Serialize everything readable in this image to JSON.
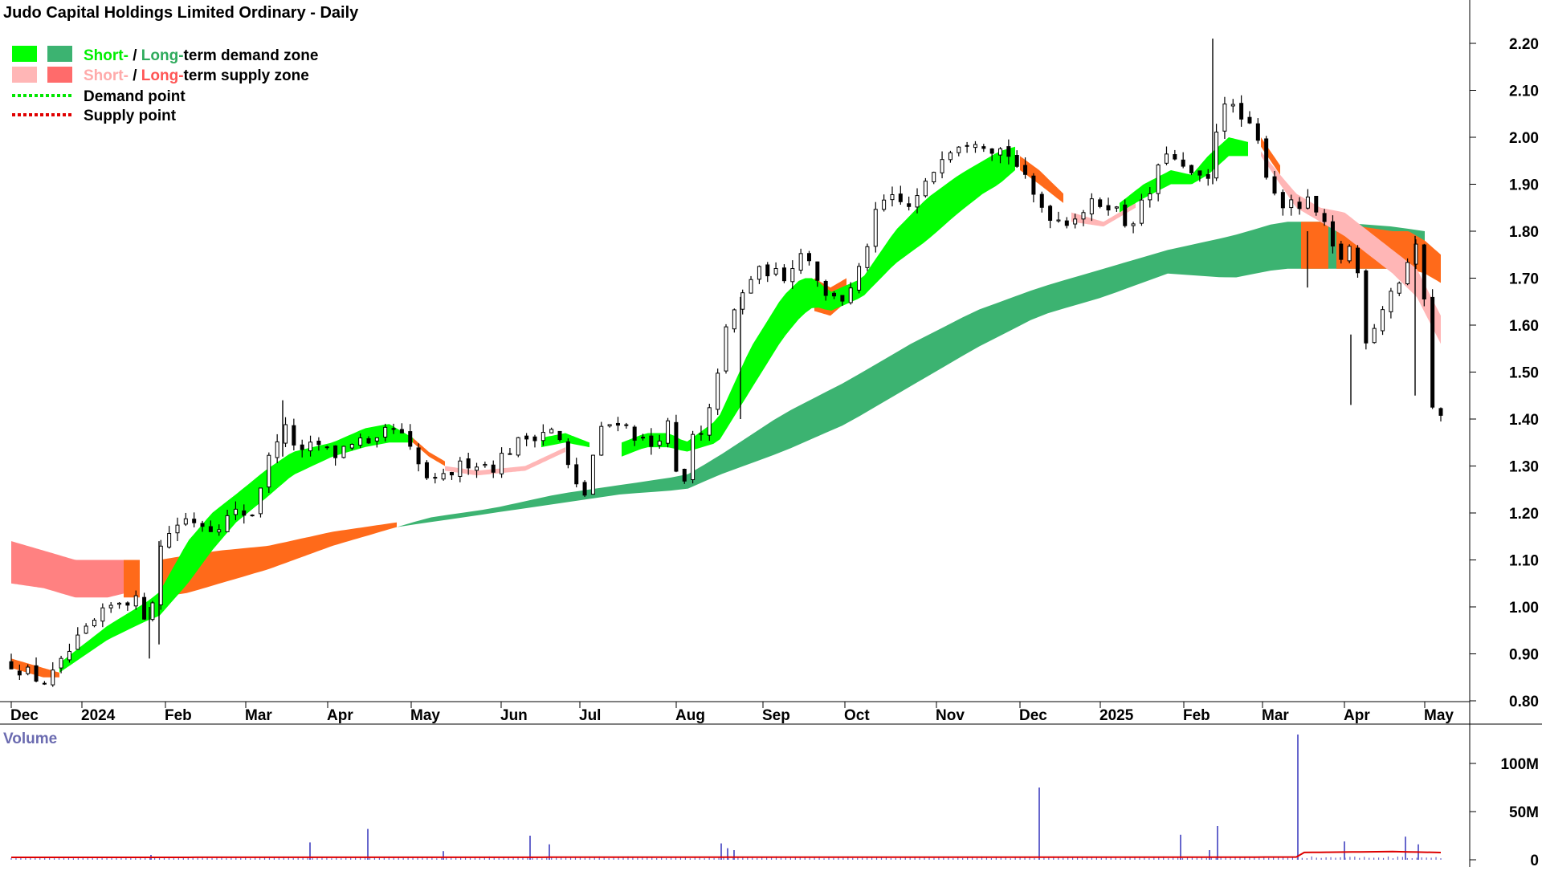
{
  "chart_data": {
    "type": "candlestick",
    "title": "Judo Capital Holdings Limited Ordinary - Daily",
    "legend": {
      "demand_zone": {
        "short": "Short-",
        "sep": " / ",
        "long": "Long-",
        "rest": "term demand zone"
      },
      "supply_zone": {
        "short": "Short-",
        "sep": " / ",
        "long": "Long-",
        "rest": "term supply zone"
      },
      "demand_point": "Demand point",
      "supply_point": "Supply point"
    },
    "colors": {
      "short_demand": "#00ff00",
      "long_demand": "#3cb371",
      "short_supply": "#ffb6b6",
      "long_supply": "#ff6b6b",
      "supply_orange": "#ff6a1a",
      "demand_point": "#00e600",
      "supply_point": "#e00000",
      "volume_bar": "#6666cc",
      "volume_avg": "#dd0000",
      "candle": "#000000"
    },
    "x_axis": {
      "labels": [
        "Dec",
        "2024",
        "Feb",
        "Mar",
        "Apr",
        "May",
        "Jun",
        "Jul",
        "Aug",
        "Sep",
        "Oct",
        "Nov",
        "Dec",
        "2025",
        "Feb",
        "Mar",
        "Apr",
        "May"
      ],
      "label_days": [
        0,
        44,
        96,
        146,
        197,
        249,
        305,
        354,
        414,
        468,
        519,
        576,
        628,
        678,
        730,
        779,
        830,
        880
      ]
    },
    "y_axis": {
      "ticks": [
        0.8,
        0.9,
        1.0,
        1.1,
        1.2,
        1.3,
        1.4,
        1.5,
        1.6,
        1.7,
        1.8,
        1.9,
        2.0,
        2.1,
        2.2
      ],
      "tick_labels": [
        "0.80",
        "0.90",
        "1.00",
        "1.10",
        "1.20",
        "1.30",
        "1.40",
        "1.50",
        "1.60",
        "1.70",
        "1.80",
        "1.90",
        "2.00",
        "2.10",
        "2.20"
      ],
      "range": [
        0.77,
        2.25
      ]
    },
    "close_path": {
      "days": [
        0,
        10,
        20,
        28,
        35,
        50,
        62,
        70,
        78,
        86,
        92,
        100,
        110,
        125,
        140,
        150,
        157,
        165,
        172,
        180,
        190,
        200,
        215,
        225,
        232,
        240,
        252,
        257,
        265,
        275,
        285,
        300,
        308,
        320,
        335,
        342,
        350,
        357,
        360,
        368,
        378,
        390,
        400,
        408,
        414,
        418,
        424,
        432,
        438,
        446,
        452,
        460,
        470,
        480,
        490,
        495,
        500,
        508,
        512,
        520,
        530,
        536,
        545,
        560,
        570,
        580,
        590,
        600,
        610,
        620,
        628,
        635,
        645,
        655,
        665,
        675,
        685,
        695,
        705,
        712,
        718,
        728,
        736,
        742,
        748,
        752,
        760,
        768,
        775,
        782,
        790,
        800,
        808,
        816,
        826,
        830,
        836,
        844,
        852,
        860,
        866,
        870,
        874,
        878,
        884,
        890
      ],
      "close": [
        0.88,
        0.86,
        0.84,
        0.86,
        0.9,
        0.96,
        1.0,
        1.02,
        1.01,
        0.97,
        1.12,
        1.17,
        1.19,
        1.17,
        1.2,
        1.2,
        1.28,
        1.36,
        1.38,
        1.32,
        1.35,
        1.32,
        1.36,
        1.33,
        1.37,
        1.38,
        1.31,
        1.28,
        1.26,
        1.29,
        1.31,
        1.3,
        1.33,
        1.36,
        1.38,
        1.35,
        1.26,
        1.24,
        1.3,
        1.38,
        1.4,
        1.36,
        1.34,
        1.4,
        1.28,
        1.24,
        1.36,
        1.36,
        1.48,
        1.6,
        1.64,
        1.7,
        1.72,
        1.7,
        1.75,
        1.76,
        1.72,
        1.65,
        1.67,
        1.65,
        1.73,
        1.82,
        1.87,
        1.85,
        1.9,
        1.97,
        1.99,
        2.0,
        1.98,
        1.97,
        1.93,
        1.88,
        1.84,
        1.82,
        1.84,
        1.86,
        1.86,
        1.81,
        1.86,
        1.9,
        1.98,
        1.93,
        1.92,
        1.9,
        1.91,
        2.1,
        2.06,
        2.03,
        2.0,
        1.92,
        1.86,
        1.85,
        1.86,
        1.82,
        1.73,
        1.76,
        1.77,
        1.56,
        1.63,
        1.68,
        1.7,
        1.74,
        1.76,
        1.75,
        1.44,
        1.4
      ]
    },
    "candles": {
      "count": 173,
      "last_day": 890,
      "range_factor": 0.018
    },
    "spikes": [
      {
        "day": 92,
        "high": 1.14,
        "low": 0.92
      },
      {
        "day": 86,
        "high": 1.0,
        "low": 0.89
      },
      {
        "day": 169,
        "high": 1.44,
        "low": 1.32
      },
      {
        "day": 454,
        "high": 1.66,
        "low": 1.4
      },
      {
        "day": 748,
        "high": 2.21,
        "low": 1.9
      },
      {
        "day": 807,
        "high": 1.8,
        "low": 1.68
      },
      {
        "day": 834,
        "high": 1.58,
        "low": 1.43
      },
      {
        "day": 874,
        "high": 1.79,
        "low": 1.45
      }
    ],
    "demand_short_zone": {
      "days": [
        30,
        60,
        84,
        92,
        110,
        125,
        140,
        158,
        175,
        200,
        220,
        235,
        240,
        250
      ],
      "upper": [
        0.88,
        0.96,
        1.01,
        1.03,
        1.14,
        1.2,
        1.24,
        1.29,
        1.33,
        1.35,
        1.38,
        1.39,
        1.38,
        1.36
      ],
      "lower": [
        0.86,
        0.93,
        0.97,
        0.98,
        1.05,
        1.12,
        1.18,
        1.23,
        1.28,
        1.32,
        1.34,
        1.35,
        1.35,
        1.35
      ]
    },
    "demand_short_zone_2": {
      "days": [
        330,
        345,
        360
      ],
      "upper": [
        1.36,
        1.37,
        1.35
      ],
      "lower": [
        1.34,
        1.35,
        1.34
      ]
    },
    "demand_short_zone_3": {
      "days": [
        380,
        395,
        410,
        420,
        440,
        460,
        480,
        492,
        500,
        510,
        530,
        550,
        570,
        590,
        605,
        615,
        625
      ],
      "upper": [
        1.35,
        1.37,
        1.37,
        1.35,
        1.4,
        1.55,
        1.66,
        1.7,
        1.7,
        1.67,
        1.7,
        1.8,
        1.87,
        1.92,
        1.95,
        1.97,
        1.98
      ],
      "lower": [
        1.32,
        1.34,
        1.34,
        1.33,
        1.35,
        1.46,
        1.57,
        1.62,
        1.64,
        1.63,
        1.66,
        1.73,
        1.78,
        1.84,
        1.88,
        1.9,
        1.93
      ]
    },
    "demand_short_zone_4": {
      "days": [
        690,
        705,
        722,
        735,
        745,
        758,
        770
      ],
      "upper": [
        1.86,
        1.9,
        1.93,
        1.92,
        1.96,
        2.0,
        1.99
      ],
      "lower": [
        1.84,
        1.87,
        1.9,
        1.9,
        1.92,
        1.96,
        1.96
      ]
    },
    "demand_long_zone": {
      "days": [
        240,
        260,
        300,
        340,
        380,
        420,
        440,
        480,
        520,
        560,
        600,
        640,
        680,
        720,
        760,
        790,
        820,
        860,
        880
      ],
      "upper": [
        1.17,
        1.19,
        1.21,
        1.24,
        1.26,
        1.28,
        1.32,
        1.41,
        1.48,
        1.56,
        1.63,
        1.68,
        1.72,
        1.76,
        1.79,
        1.82,
        1.82,
        1.81,
        1.8
      ],
      "lower": [
        1.17,
        1.18,
        1.2,
        1.22,
        1.24,
        1.25,
        1.28,
        1.33,
        1.39,
        1.47,
        1.55,
        1.62,
        1.66,
        1.71,
        1.7,
        1.72,
        1.72,
        1.72,
        1.72
      ]
    },
    "supply_long_zone": {
      "days": [
        0,
        20,
        40,
        60,
        72
      ],
      "upper": [
        1.14,
        1.12,
        1.1,
        1.1,
        1.1
      ],
      "lower": [
        1.05,
        1.04,
        1.02,
        1.02,
        1.03
      ]
    },
    "supply_orange_zones": [
      {
        "days": [
          0,
          10,
          20,
          30
        ],
        "upper": [
          0.89,
          0.88,
          0.87,
          0.86
        ],
        "lower": [
          0.87,
          0.86,
          0.85,
          0.85
        ]
      },
      {
        "days": [
          70,
          75,
          80
        ],
        "upper": [
          1.1,
          1.1,
          1.1
        ],
        "lower": [
          1.02,
          1.02,
          1.02
        ]
      },
      {
        "days": [
          92,
          110,
          130,
          160,
          200,
          240
        ],
        "upper": [
          1.1,
          1.11,
          1.12,
          1.13,
          1.16,
          1.18
        ],
        "lower": [
          1.02,
          1.03,
          1.05,
          1.08,
          1.13,
          1.17
        ]
      },
      {
        "days": [
          250,
          260,
          270
        ],
        "upper": [
          1.36,
          1.33,
          1.31
        ],
        "lower": [
          1.35,
          1.32,
          1.3
        ]
      },
      {
        "days": [
          500,
          510,
          520
        ],
        "upper": [
          1.7,
          1.68,
          1.7
        ],
        "lower": [
          1.63,
          1.62,
          1.65
        ]
      },
      {
        "days": [
          628,
          640,
          655
        ],
        "upper": [
          1.96,
          1.93,
          1.88
        ],
        "lower": [
          1.93,
          1.9,
          1.86
        ]
      },
      {
        "days": [
          778,
          790
        ],
        "upper": [
          2.0,
          1.94
        ],
        "lower": [
          1.98,
          1.92
        ]
      },
      {
        "days": [
          803,
          810,
          820
        ],
        "upper": [
          1.82,
          1.82,
          1.82
        ],
        "lower": [
          1.72,
          1.72,
          1.72
        ]
      },
      {
        "days": [
          825,
          840,
          860,
          870,
          880,
          890
        ],
        "upper": [
          1.82,
          1.81,
          1.8,
          1.8,
          1.78,
          1.75
        ],
        "lower": [
          1.72,
          1.72,
          1.72,
          1.72,
          1.71,
          1.69
        ]
      }
    ],
    "supply_short_zone": {
      "days": [
        270,
        290,
        320,
        345,
        660,
        680,
        700,
        778,
        790,
        800,
        815,
        830,
        845,
        860,
        875,
        890
      ],
      "upper": [
        1.3,
        1.29,
        1.3,
        1.34,
        1.84,
        1.82,
        1.86,
        1.97,
        1.92,
        1.88,
        1.85,
        1.84,
        1.8,
        1.76,
        1.72,
        1.62
      ],
      "lower": [
        1.29,
        1.28,
        1.29,
        1.33,
        1.82,
        1.81,
        1.85,
        1.96,
        1.9,
        1.85,
        1.82,
        1.79,
        1.75,
        1.71,
        1.66,
        1.56
      ]
    },
    "volume": {
      "label": "Volume",
      "ticks": [
        0,
        50,
        100
      ],
      "tick_labels": [
        "0",
        "50M",
        "100M"
      ],
      "range": [
        0,
        130
      ],
      "baseline": 2.5,
      "spikes": [
        {
          "day": 87,
          "value": 5
        },
        {
          "day": 186,
          "value": 18
        },
        {
          "day": 222,
          "value": 32
        },
        {
          "day": 269,
          "value": 9
        },
        {
          "day": 323,
          "value": 25
        },
        {
          "day": 335,
          "value": 16
        },
        {
          "day": 442,
          "value": 17
        },
        {
          "day": 446,
          "value": 12
        },
        {
          "day": 450,
          "value": 10
        },
        {
          "day": 640,
          "value": 75
        },
        {
          "day": 728,
          "value": 26
        },
        {
          "day": 746,
          "value": 10
        },
        {
          "day": 751,
          "value": 35
        },
        {
          "day": 801,
          "value": 130
        },
        {
          "day": 830,
          "value": 19
        },
        {
          "day": 868,
          "value": 24
        },
        {
          "day": 876,
          "value": 16
        }
      ],
      "avg_days": [
        0,
        800,
        801,
        860,
        890
      ],
      "avg_values": [
        2.5,
        2.8,
        7.5,
        8.5,
        7.5
      ]
    }
  }
}
